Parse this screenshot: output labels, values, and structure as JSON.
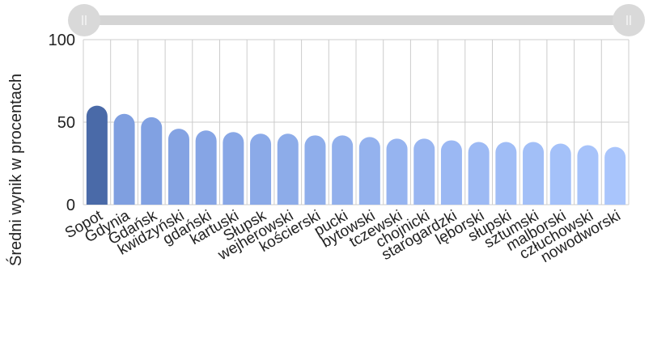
{
  "chart_data": {
    "type": "bar",
    "title": "",
    "xlabel": "",
    "ylabel": "Średni wynik w procentach",
    "ylim": [
      0,
      100
    ],
    "yticks": [
      0,
      50,
      100
    ],
    "grid": true,
    "categories": [
      "Sopot",
      "Gdynia",
      "Gdańsk",
      "kwidzyński",
      "gdański",
      "kartuski",
      "Słupsk",
      "wejherowski",
      "kościerski",
      "pucki",
      "bytowski",
      "tczewski",
      "chojnicki",
      "starogardzki",
      "lęborski",
      "słupski",
      "sztumski",
      "malborski",
      "człuchowski",
      "nowodworski"
    ],
    "values": [
      60,
      55,
      53,
      46,
      45,
      44,
      43,
      43,
      42,
      42,
      41,
      40,
      40,
      39,
      38,
      38,
      38,
      37,
      36,
      35
    ],
    "colors": {
      "highlight": "#4a6aa8",
      "gradient_start": "#7f9fe0",
      "gradient_end": "#a9c5fc",
      "grid": "#cccccc",
      "axis_text": "#222222",
      "slider_track": "#d4d4d4",
      "slider_handle": "#d9d9d9",
      "slider_handle_grip": "#f5f5f5"
    },
    "range_slider": {
      "start": 0,
      "end": 1,
      "handle_icon": "grip-lines-icon"
    }
  }
}
